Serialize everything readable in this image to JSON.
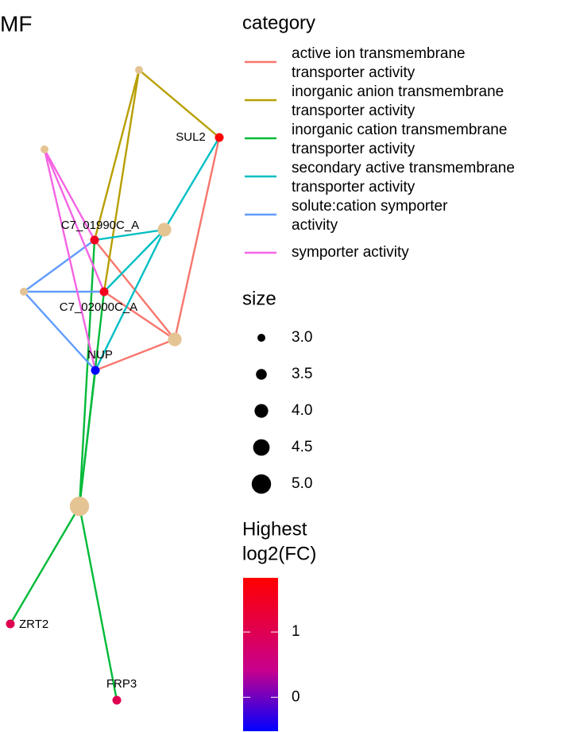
{
  "title": "MF",
  "category_legend": {
    "title": "category",
    "items": [
      {
        "name_lines": [
          "active ion transmembrane",
          "transporter activity"
        ],
        "color": "#F8766D",
        "size": 4
      },
      {
        "name_lines": [
          "inorganic anion transmembrane",
          "transporter activity"
        ],
        "color": "#B79F00",
        "size": 3
      },
      {
        "name_lines": [
          "inorganic cation transmembrane",
          "transporter activity"
        ],
        "color": "#00BA38",
        "size": 5
      },
      {
        "name_lines": [
          "secondary active transmembrane",
          "transporter activity"
        ],
        "color": "#00BFC4",
        "size": 4
      },
      {
        "name_lines": [
          "solute:cation symporter",
          "activity"
        ],
        "color": "#619CFF",
        "size": 3
      },
      {
        "name_lines": [
          "symporter activity"
        ],
        "color": "#F564E3",
        "size": 3
      }
    ],
    "node_color": "#E5C494"
  },
  "size_legend": {
    "title": "size",
    "ticks": [
      {
        "value": 3,
        "label": "3.0"
      },
      {
        "value": 3.5,
        "label": "3.5"
      },
      {
        "value": 4,
        "label": "4.0"
      },
      {
        "value": 4.5,
        "label": "4.5"
      },
      {
        "value": 5,
        "label": "5.0"
      }
    ]
  },
  "color_legend": {
    "title_lines": [
      "Highest",
      "log2(FC)"
    ],
    "lim": [
      -0.52,
      1.83
    ],
    "ticks": [
      1,
      0
    ],
    "low_color": "#0000FF",
    "high_color": "#FF0000"
  },
  "genes": [
    {
      "label": "SUL2",
      "fc": 1.83
    },
    {
      "label": "C7_01990C_A",
      "fc": 1.5
    },
    {
      "label": "C7_02000C_A",
      "fc": 1.55
    },
    {
      "label": "NUP",
      "fc": -0.52
    },
    {
      "label": "ZRT2",
      "fc": 1.0
    },
    {
      "label": "FRP3",
      "fc": 1.0
    }
  ]
}
